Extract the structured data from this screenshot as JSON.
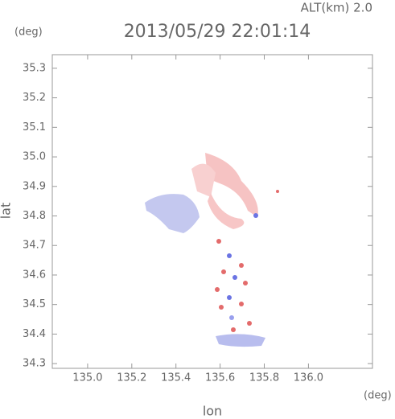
{
  "chart_data": {
    "type": "map",
    "title": "2013/05/29 22:01:14",
    "annotation": "ALT(km) 2.0",
    "y_unit": "(deg)",
    "x_unit": "(deg)",
    "xlabel": "lon",
    "ylabel": "lat",
    "xlim": [
      134.84,
      136.29
    ],
    "xticks": [
      {
        "value": 135.0,
        "label": "135.0"
      },
      135.2,
      135.4,
      135.6,
      135.8,
      {
        "value": 136.0,
        "label": "136.0"
      }
    ],
    "ylim": [
      34.284,
      35.346
    ],
    "yticks": [
      34.3,
      34.4,
      34.5,
      34.6,
      34.7,
      34.8,
      34.9,
      {
        "value": 35.0,
        "label": "35.0"
      },
      35.1,
      35.2,
      35.3
    ]
  }
}
